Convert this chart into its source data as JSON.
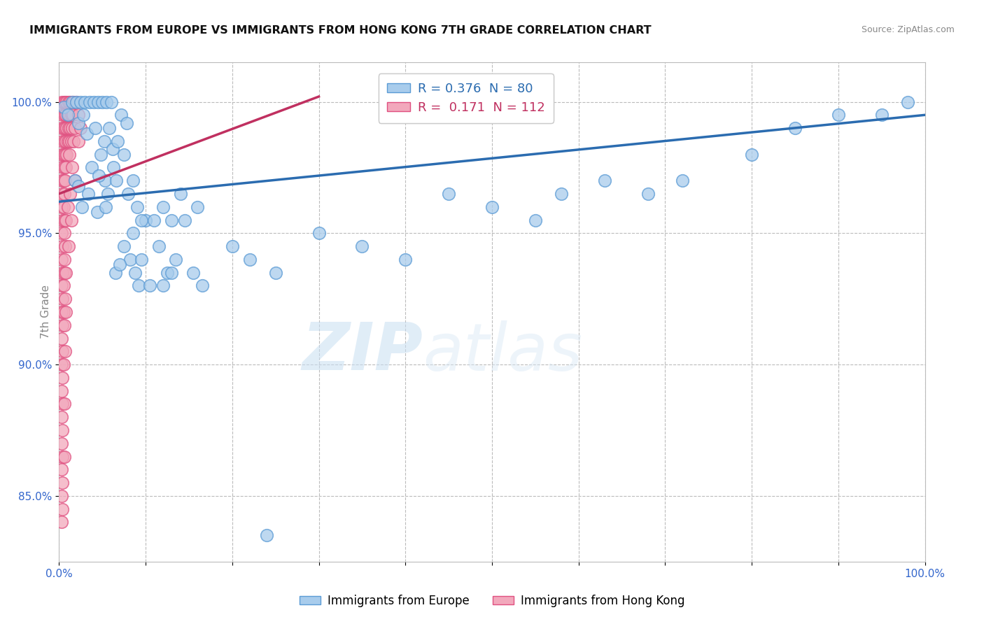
{
  "title": "IMMIGRANTS FROM EUROPE VS IMMIGRANTS FROM HONG KONG 7TH GRADE CORRELATION CHART",
  "source": "Source: ZipAtlas.com",
  "ylabel": "7th Grade",
  "watermark_zip": "ZIP",
  "watermark_atlas": "atlas",
  "legend_blue_label": "Immigrants from Europe",
  "legend_pink_label": "Immigrants from Hong Kong",
  "R_blue": 0.376,
  "N_blue": 80,
  "R_pink": 0.171,
  "N_pink": 112,
  "blue_color": "#A8CCEC",
  "pink_color": "#F2A8BC",
  "blue_edge_color": "#5B9BD5",
  "pink_edge_color": "#E05080",
  "blue_line_color": "#2B6CB0",
  "pink_line_color": "#C03060",
  "xlim": [
    0,
    100
  ],
  "ylim": [
    82.5,
    101.5
  ],
  "yticks": [
    85.0,
    90.0,
    95.0,
    100.0
  ],
  "ytick_labels": [
    "85.0%",
    "90.0%",
    "95.0%",
    "100.0%"
  ],
  "grid_color": "#BBBBBB",
  "blue_scatter": [
    [
      0.5,
      99.8
    ],
    [
      1.0,
      99.5
    ],
    [
      1.5,
      100.0
    ],
    [
      2.0,
      100.0
    ],
    [
      2.5,
      100.0
    ],
    [
      3.0,
      100.0
    ],
    [
      3.5,
      100.0
    ],
    [
      4.0,
      100.0
    ],
    [
      4.5,
      100.0
    ],
    [
      5.0,
      100.0
    ],
    [
      5.5,
      100.0
    ],
    [
      6.0,
      100.0
    ],
    [
      2.2,
      99.2
    ],
    [
      3.2,
      98.8
    ],
    [
      4.2,
      99.0
    ],
    [
      5.2,
      98.5
    ],
    [
      5.8,
      99.0
    ],
    [
      6.2,
      98.2
    ],
    [
      7.2,
      99.5
    ],
    [
      7.5,
      98.0
    ],
    [
      2.8,
      99.5
    ],
    [
      4.8,
      98.0
    ],
    [
      6.8,
      98.5
    ],
    [
      7.8,
      99.2
    ],
    [
      3.8,
      97.5
    ],
    [
      5.3,
      97.0
    ],
    [
      6.3,
      97.5
    ],
    [
      8.5,
      97.0
    ],
    [
      1.8,
      97.0
    ],
    [
      2.2,
      96.8
    ],
    [
      4.6,
      97.2
    ],
    [
      5.6,
      96.5
    ],
    [
      6.6,
      97.0
    ],
    [
      2.6,
      96.0
    ],
    [
      3.4,
      96.5
    ],
    [
      4.4,
      95.8
    ],
    [
      5.4,
      96.0
    ],
    [
      8.0,
      96.5
    ],
    [
      9.0,
      96.0
    ],
    [
      10.0,
      95.5
    ],
    [
      12.0,
      96.0
    ],
    [
      14.0,
      96.5
    ],
    [
      16.0,
      96.0
    ],
    [
      8.5,
      95.0
    ],
    [
      9.5,
      95.5
    ],
    [
      11.0,
      95.5
    ],
    [
      13.0,
      95.5
    ],
    [
      14.5,
      95.5
    ],
    [
      7.5,
      94.5
    ],
    [
      8.2,
      94.0
    ],
    [
      9.5,
      94.0
    ],
    [
      11.5,
      94.5
    ],
    [
      13.5,
      94.0
    ],
    [
      6.5,
      93.5
    ],
    [
      7.0,
      93.8
    ],
    [
      8.8,
      93.5
    ],
    [
      9.2,
      93.0
    ],
    [
      12.5,
      93.5
    ],
    [
      13.0,
      93.5
    ],
    [
      10.5,
      93.0
    ],
    [
      12.0,
      93.0
    ],
    [
      15.5,
      93.5
    ],
    [
      16.5,
      93.0
    ],
    [
      20.0,
      94.5
    ],
    [
      22.0,
      94.0
    ],
    [
      25.0,
      93.5
    ],
    [
      30.0,
      95.0
    ],
    [
      35.0,
      94.5
    ],
    [
      40.0,
      94.0
    ],
    [
      45.0,
      96.5
    ],
    [
      50.0,
      96.0
    ],
    [
      55.0,
      95.5
    ],
    [
      58.0,
      96.5
    ],
    [
      63.0,
      97.0
    ],
    [
      68.0,
      96.5
    ],
    [
      72.0,
      97.0
    ],
    [
      80.0,
      98.0
    ],
    [
      85.0,
      99.0
    ],
    [
      90.0,
      99.5
    ],
    [
      95.0,
      99.5
    ],
    [
      98.0,
      100.0
    ],
    [
      24.0,
      83.5
    ]
  ],
  "pink_scatter": [
    [
      0.3,
      100.0
    ],
    [
      0.5,
      100.0
    ],
    [
      0.7,
      100.0
    ],
    [
      0.9,
      100.0
    ],
    [
      1.1,
      100.0
    ],
    [
      1.3,
      100.0
    ],
    [
      1.5,
      100.0
    ],
    [
      1.7,
      100.0
    ],
    [
      2.0,
      100.0
    ],
    [
      0.4,
      99.5
    ],
    [
      0.6,
      99.5
    ],
    [
      0.8,
      99.5
    ],
    [
      1.0,
      99.5
    ],
    [
      1.2,
      99.5
    ],
    [
      1.4,
      99.5
    ],
    [
      1.6,
      99.5
    ],
    [
      2.2,
      99.5
    ],
    [
      0.3,
      99.0
    ],
    [
      0.5,
      99.0
    ],
    [
      0.7,
      99.0
    ],
    [
      0.9,
      99.0
    ],
    [
      1.1,
      99.0
    ],
    [
      1.3,
      99.0
    ],
    [
      1.5,
      99.0
    ],
    [
      1.8,
      99.0
    ],
    [
      2.5,
      99.0
    ],
    [
      0.4,
      98.5
    ],
    [
      0.6,
      98.5
    ],
    [
      0.8,
      98.5
    ],
    [
      1.0,
      98.5
    ],
    [
      1.2,
      98.5
    ],
    [
      1.4,
      98.5
    ],
    [
      1.7,
      98.5
    ],
    [
      2.2,
      98.5
    ],
    [
      0.3,
      98.0
    ],
    [
      0.5,
      98.0
    ],
    [
      0.7,
      98.0
    ],
    [
      0.9,
      98.0
    ],
    [
      1.2,
      98.0
    ],
    [
      0.4,
      97.5
    ],
    [
      0.6,
      97.5
    ],
    [
      0.8,
      97.5
    ],
    [
      1.5,
      97.5
    ],
    [
      0.3,
      97.0
    ],
    [
      0.5,
      97.0
    ],
    [
      0.7,
      97.0
    ],
    [
      1.8,
      97.0
    ],
    [
      0.4,
      96.5
    ],
    [
      0.6,
      96.5
    ],
    [
      1.3,
      96.5
    ],
    [
      0.3,
      96.0
    ],
    [
      0.5,
      96.0
    ],
    [
      1.0,
      96.0
    ],
    [
      0.4,
      95.5
    ],
    [
      0.6,
      95.5
    ],
    [
      0.8,
      95.5
    ],
    [
      1.4,
      95.5
    ],
    [
      0.3,
      95.0
    ],
    [
      0.6,
      95.0
    ],
    [
      0.4,
      94.5
    ],
    [
      0.7,
      94.5
    ],
    [
      1.1,
      94.5
    ],
    [
      0.3,
      94.0
    ],
    [
      0.6,
      94.0
    ],
    [
      0.4,
      93.5
    ],
    [
      0.6,
      93.5
    ],
    [
      0.8,
      93.5
    ],
    [
      0.3,
      93.0
    ],
    [
      0.5,
      93.0
    ],
    [
      0.4,
      92.5
    ],
    [
      0.7,
      92.5
    ],
    [
      0.3,
      92.0
    ],
    [
      0.5,
      92.0
    ],
    [
      0.8,
      92.0
    ],
    [
      0.4,
      91.5
    ],
    [
      0.6,
      91.5
    ],
    [
      0.3,
      91.0
    ],
    [
      0.4,
      90.5
    ],
    [
      0.7,
      90.5
    ],
    [
      0.3,
      90.0
    ],
    [
      0.5,
      90.0
    ],
    [
      0.4,
      89.5
    ],
    [
      0.3,
      89.0
    ],
    [
      0.4,
      88.5
    ],
    [
      0.6,
      88.5
    ],
    [
      0.3,
      88.0
    ],
    [
      0.4,
      87.5
    ],
    [
      0.3,
      87.0
    ],
    [
      0.4,
      86.5
    ],
    [
      0.6,
      86.5
    ],
    [
      0.3,
      86.0
    ],
    [
      0.4,
      85.5
    ],
    [
      0.3,
      85.0
    ],
    [
      0.4,
      84.5
    ],
    [
      0.3,
      84.0
    ]
  ],
  "blue_trend_x": [
    0,
    100
  ],
  "blue_trend_y": [
    96.2,
    99.5
  ],
  "pink_trend_x": [
    0,
    30
  ],
  "pink_trend_y": [
    96.5,
    100.2
  ]
}
